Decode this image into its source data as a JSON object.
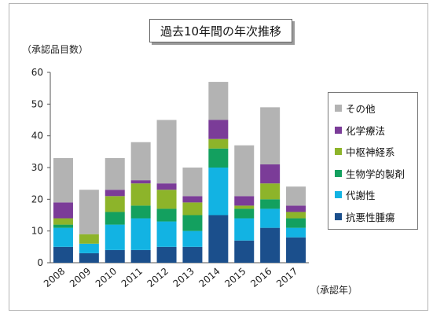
{
  "chart_data": {
    "type": "bar",
    "stacked": true,
    "title": "過去10年間の年次推移",
    "ylabel": "（承認品目数）",
    "xlabel": "（承認年）",
    "ylim": [
      0,
      60
    ],
    "yticks": [
      0,
      10,
      20,
      30,
      40,
      50,
      60
    ],
    "grid": false,
    "legend_position": "right",
    "categories": [
      "2008",
      "2009",
      "2010",
      "2011",
      "2012",
      "2013",
      "2014",
      "2015",
      "2016",
      "2017"
    ],
    "series": [
      {
        "name": "抗悪性腫瘍",
        "color": "#1b4f8c",
        "values": [
          5,
          3,
          4,
          4,
          5,
          5,
          15,
          7,
          11,
          8
        ]
      },
      {
        "name": "代謝性",
        "color": "#12b3e3",
        "values": [
          6,
          3,
          8,
          10,
          8,
          5,
          15,
          7,
          6,
          3
        ]
      },
      {
        "name": "生物学的製剤",
        "color": "#13a05f",
        "values": [
          1,
          0,
          4,
          4,
          4,
          5,
          6,
          3,
          3,
          3
        ]
      },
      {
        "name": "中枢神経系",
        "color": "#8db42a",
        "values": [
          2,
          3,
          5,
          7,
          6,
          4,
          3,
          1,
          5,
          2
        ]
      },
      {
        "name": "化学療法",
        "color": "#7b3c98",
        "values": [
          5,
          0,
          2,
          1,
          2,
          2,
          6,
          3,
          6,
          2
        ]
      },
      {
        "name": "その他",
        "color": "#b3b3b3",
        "values": [
          14,
          14,
          10,
          12,
          20,
          9,
          12,
          16,
          18,
          6
        ]
      }
    ]
  }
}
